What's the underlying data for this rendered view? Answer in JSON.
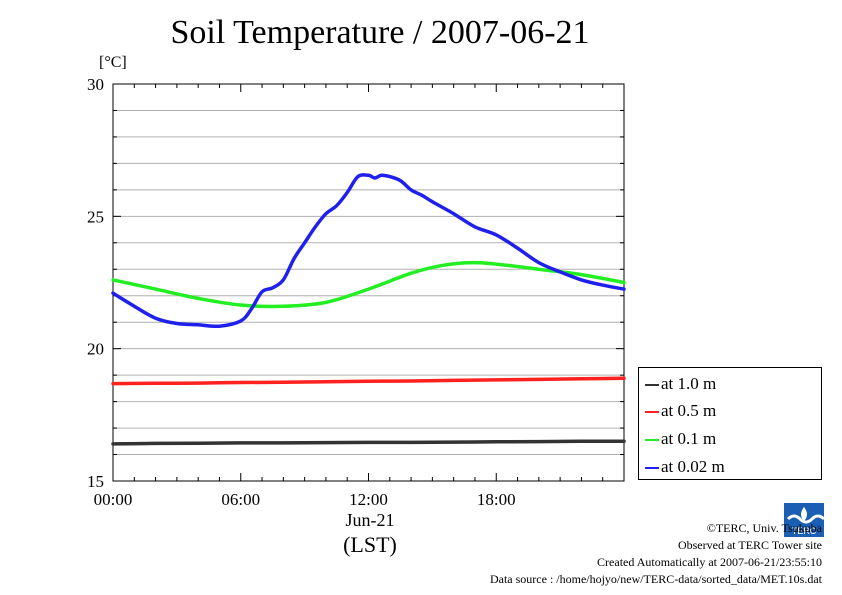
{
  "title": "Soil Temperature / 2007-06-21",
  "y_unit": "[°C]",
  "x_date_label": "Jun-21",
  "x_tz_label": "(LST)",
  "legend": [
    {
      "label": "at 1.0 m",
      "color": "#333333"
    },
    {
      "label": "at 0.5 m",
      "color": "#ff2020"
    },
    {
      "label": "at 0.1 m",
      "color": "#22ee22"
    },
    {
      "label": "at 0.02 m",
      "color": "#2020ee"
    }
  ],
  "credits": {
    "copyright": "©TERC, Univ. Tsukuba",
    "site": "Observed at TERC Tower site",
    "created": "Created Automatically at 2007-06-21/23:55:10",
    "source": "Data source : /home/hojyo/new/TERC-data/sorted_data/MET.10s.dat"
  },
  "logo_text": "TERC",
  "chart_data": {
    "type": "line",
    "title": "Soil Temperature / 2007-06-21",
    "xlabel": "Jun-21 (LST)",
    "ylabel": "[°C]",
    "xlim": [
      0,
      24
    ],
    "ylim": [
      15,
      30
    ],
    "xticks": [
      0,
      6,
      12,
      18
    ],
    "xtick_labels": [
      "00:00",
      "06:00",
      "12:00",
      "18:00"
    ],
    "yticks": [
      15,
      20,
      25,
      30
    ],
    "ytick_labels": [
      "15",
      "20",
      "25",
      "30"
    ],
    "grid": true,
    "legend_position": "right-bottom outside",
    "series": [
      {
        "name": "at 1.0 m",
        "color": "#333333",
        "x": [
          0,
          2,
          4,
          6,
          8,
          10,
          12,
          14,
          16,
          18,
          20,
          22,
          24
        ],
        "y": [
          16.4,
          16.42,
          16.43,
          16.44,
          16.44,
          16.45,
          16.46,
          16.46,
          16.47,
          16.48,
          16.49,
          16.5,
          16.5
        ]
      },
      {
        "name": "at 0.5 m",
        "color": "#ff2020",
        "x": [
          0,
          2,
          4,
          6,
          8,
          10,
          12,
          14,
          16,
          18,
          20,
          22,
          24
        ],
        "y": [
          18.68,
          18.69,
          18.7,
          18.72,
          18.73,
          18.75,
          18.77,
          18.78,
          18.8,
          18.82,
          18.84,
          18.86,
          18.88
        ]
      },
      {
        "name": "at 0.1 m",
        "color": "#22ee22",
        "x": [
          0,
          2,
          4,
          6,
          8,
          10,
          12,
          14,
          15.5,
          17,
          18.5,
          20,
          22,
          24
        ],
        "y": [
          22.6,
          22.25,
          21.9,
          21.65,
          21.6,
          21.75,
          22.25,
          22.85,
          23.15,
          23.25,
          23.15,
          23.0,
          22.8,
          22.5
        ]
      },
      {
        "name": "at 0.02 m",
        "color": "#2020ee",
        "x": [
          0,
          1,
          2,
          3,
          4,
          5,
          6,
          6.5,
          7,
          7.5,
          8,
          8.5,
          9,
          9.5,
          10,
          10.5,
          11,
          11.5,
          12,
          12.3,
          12.6,
          13,
          13.5,
          14,
          14.5,
          15,
          16,
          17,
          18,
          19,
          20,
          21,
          22,
          23,
          24
        ],
        "y": [
          22.1,
          21.6,
          21.15,
          20.95,
          20.9,
          20.85,
          21.05,
          21.5,
          22.15,
          22.3,
          22.6,
          23.4,
          24.0,
          24.6,
          25.1,
          25.4,
          25.9,
          26.5,
          26.55,
          26.45,
          26.55,
          26.5,
          26.35,
          26.0,
          25.8,
          25.55,
          25.1,
          24.6,
          24.3,
          23.8,
          23.25,
          22.9,
          22.6,
          22.4,
          22.25
        ]
      }
    ]
  }
}
